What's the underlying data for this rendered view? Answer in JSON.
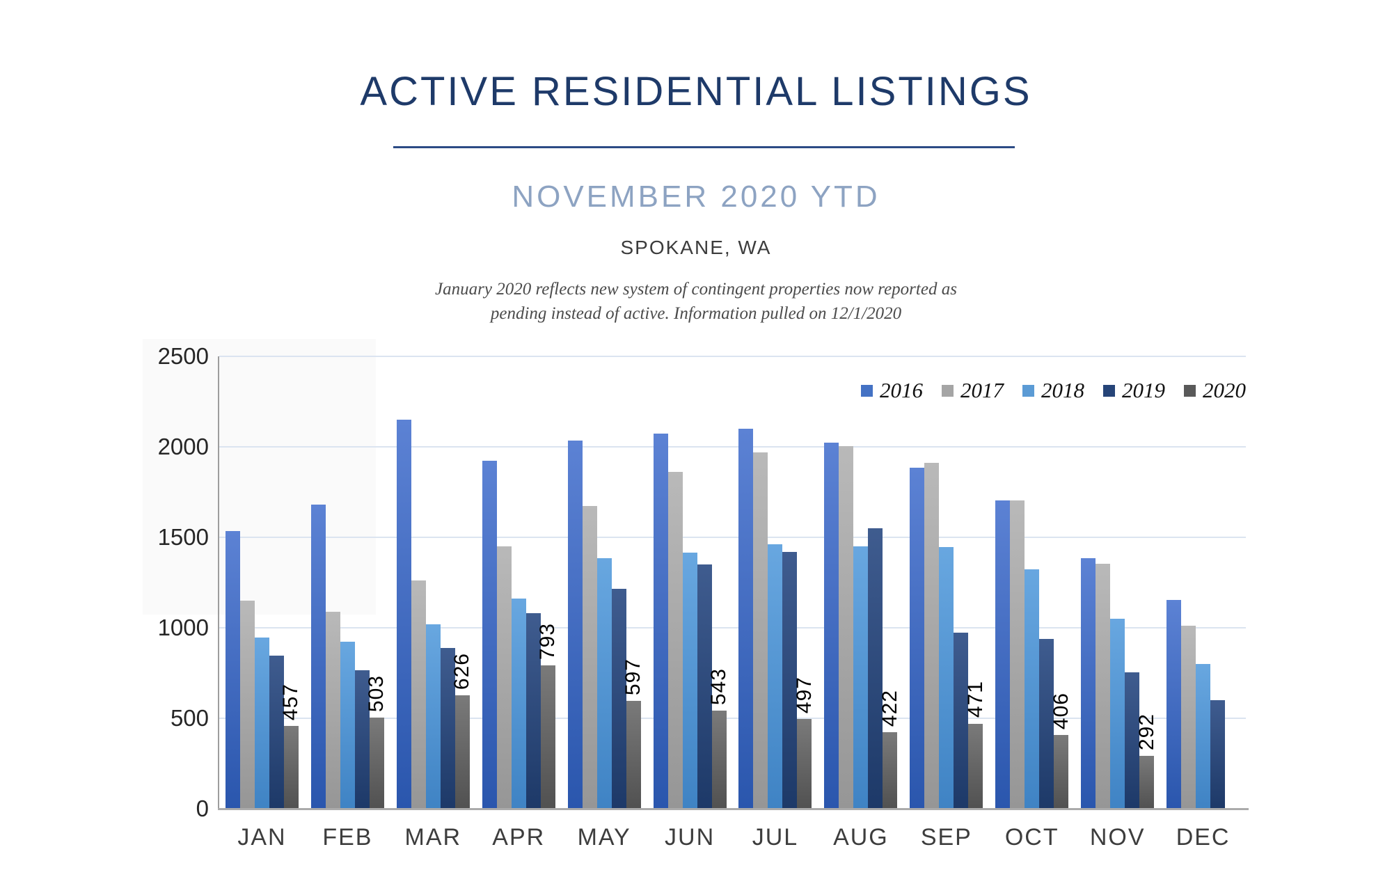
{
  "header": {
    "title": "ACTIVE RESIDENTIAL LISTINGS",
    "subtitle": "NOVEMBER 2020 YTD",
    "location": "SPOKANE, WA",
    "note_line1": "January 2020 reflects new system of contingent properties now reported as",
    "note_line2": "pending instead of active.  Information pulled on 12/1/2020"
  },
  "chart_data": {
    "type": "bar",
    "title": "Active residential listings by month and year",
    "categories": [
      "JAN",
      "FEB",
      "MAR",
      "APR",
      "MAY",
      "JUN",
      "JUL",
      "AUG",
      "SEP",
      "OCT",
      "NOV",
      "DEC"
    ],
    "series": [
      {
        "name": "2016",
        "color": "#4472C4",
        "grad_top": "#5c82d4",
        "grad_bottom": "#2a56ad",
        "values": [
          1535,
          1680,
          2150,
          1925,
          2035,
          2075,
          2100,
          2025,
          1885,
          1705,
          1385,
          1155
        ]
      },
      {
        "name": "2017",
        "color": "#A5A5A5",
        "grad_top": "#b9b9b9",
        "grad_bottom": "#969696",
        "values": [
          1150,
          1090,
          1260,
          1450,
          1675,
          1860,
          1970,
          2005,
          1910,
          1705,
          1355,
          1010
        ]
      },
      {
        "name": "2018",
        "color": "#5B9BD5",
        "grad_top": "#68a7e0",
        "grad_bottom": "#3f83c4",
        "values": [
          945,
          925,
          1020,
          1160,
          1385,
          1415,
          1460,
          1450,
          1445,
          1325,
          1050,
          800
        ]
      },
      {
        "name": "2019",
        "color": "#264478",
        "grad_top": "#3f5c8f",
        "grad_bottom": "#1d3968",
        "values": [
          845,
          765,
          890,
          1080,
          1215,
          1350,
          1420,
          1550,
          975,
          940,
          755,
          600
        ]
      },
      {
        "name": "2020",
        "color": "#595959",
        "grad_top": "#7a7a7a",
        "grad_bottom": "#515151",
        "values": [
          457,
          503,
          626,
          793,
          597,
          543,
          497,
          422,
          471,
          406,
          292,
          null
        ],
        "data_labels": [
          457,
          503,
          626,
          793,
          597,
          543,
          497,
          422,
          471,
          406,
          292
        ]
      }
    ],
    "ylim": [
      0,
      2500
    ],
    "yticks": [
      0,
      500,
      1000,
      1500,
      2000,
      2500
    ],
    "grid": true,
    "legend_position": "top-right"
  }
}
